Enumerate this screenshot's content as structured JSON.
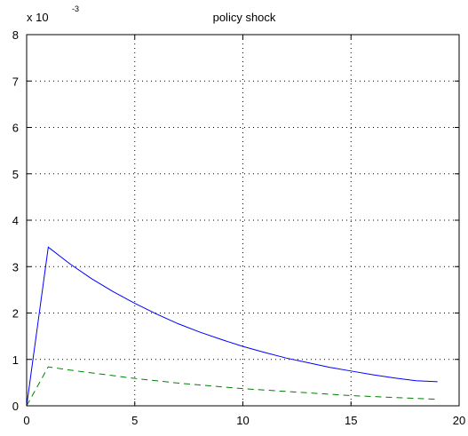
{
  "chart_data": {
    "type": "line",
    "title": "policy shock",
    "xlabel": "",
    "ylabel": "",
    "y_multiplier": "x 10",
    "y_multiplier_exponent": "-3",
    "xlim": [
      0,
      20
    ],
    "ylim": [
      0,
      8
    ],
    "xticks": [
      "0",
      "5",
      "10",
      "15",
      "20"
    ],
    "yticks": [
      "0",
      "1",
      "2",
      "3",
      "4",
      "5",
      "6",
      "7",
      "8"
    ],
    "grid": true,
    "series": [
      {
        "style": "solid",
        "color": "#0000ff",
        "x": [
          0,
          1,
          2,
          3,
          4,
          5,
          6,
          7,
          8,
          9,
          10,
          11,
          12,
          13,
          14,
          15,
          16,
          17,
          18,
          19
        ],
        "y": [
          0,
          3.42,
          3.06,
          2.74,
          2.46,
          2.21,
          1.98,
          1.77,
          1.59,
          1.43,
          1.28,
          1.15,
          1.03,
          0.93,
          0.83,
          0.75,
          0.67,
          0.6,
          0.54,
          0.52
        ]
      },
      {
        "style": "dashed",
        "color": "#008000",
        "x": [
          0,
          1,
          2,
          3,
          4,
          5,
          6,
          7,
          8,
          9,
          10,
          11,
          12,
          13,
          14,
          15,
          16,
          17,
          18,
          19
        ],
        "y": [
          0,
          0.84,
          0.77,
          0.71,
          0.65,
          0.59,
          0.54,
          0.49,
          0.45,
          0.41,
          0.37,
          0.34,
          0.31,
          0.28,
          0.25,
          0.22,
          0.2,
          0.18,
          0.16,
          0.14
        ]
      }
    ]
  }
}
